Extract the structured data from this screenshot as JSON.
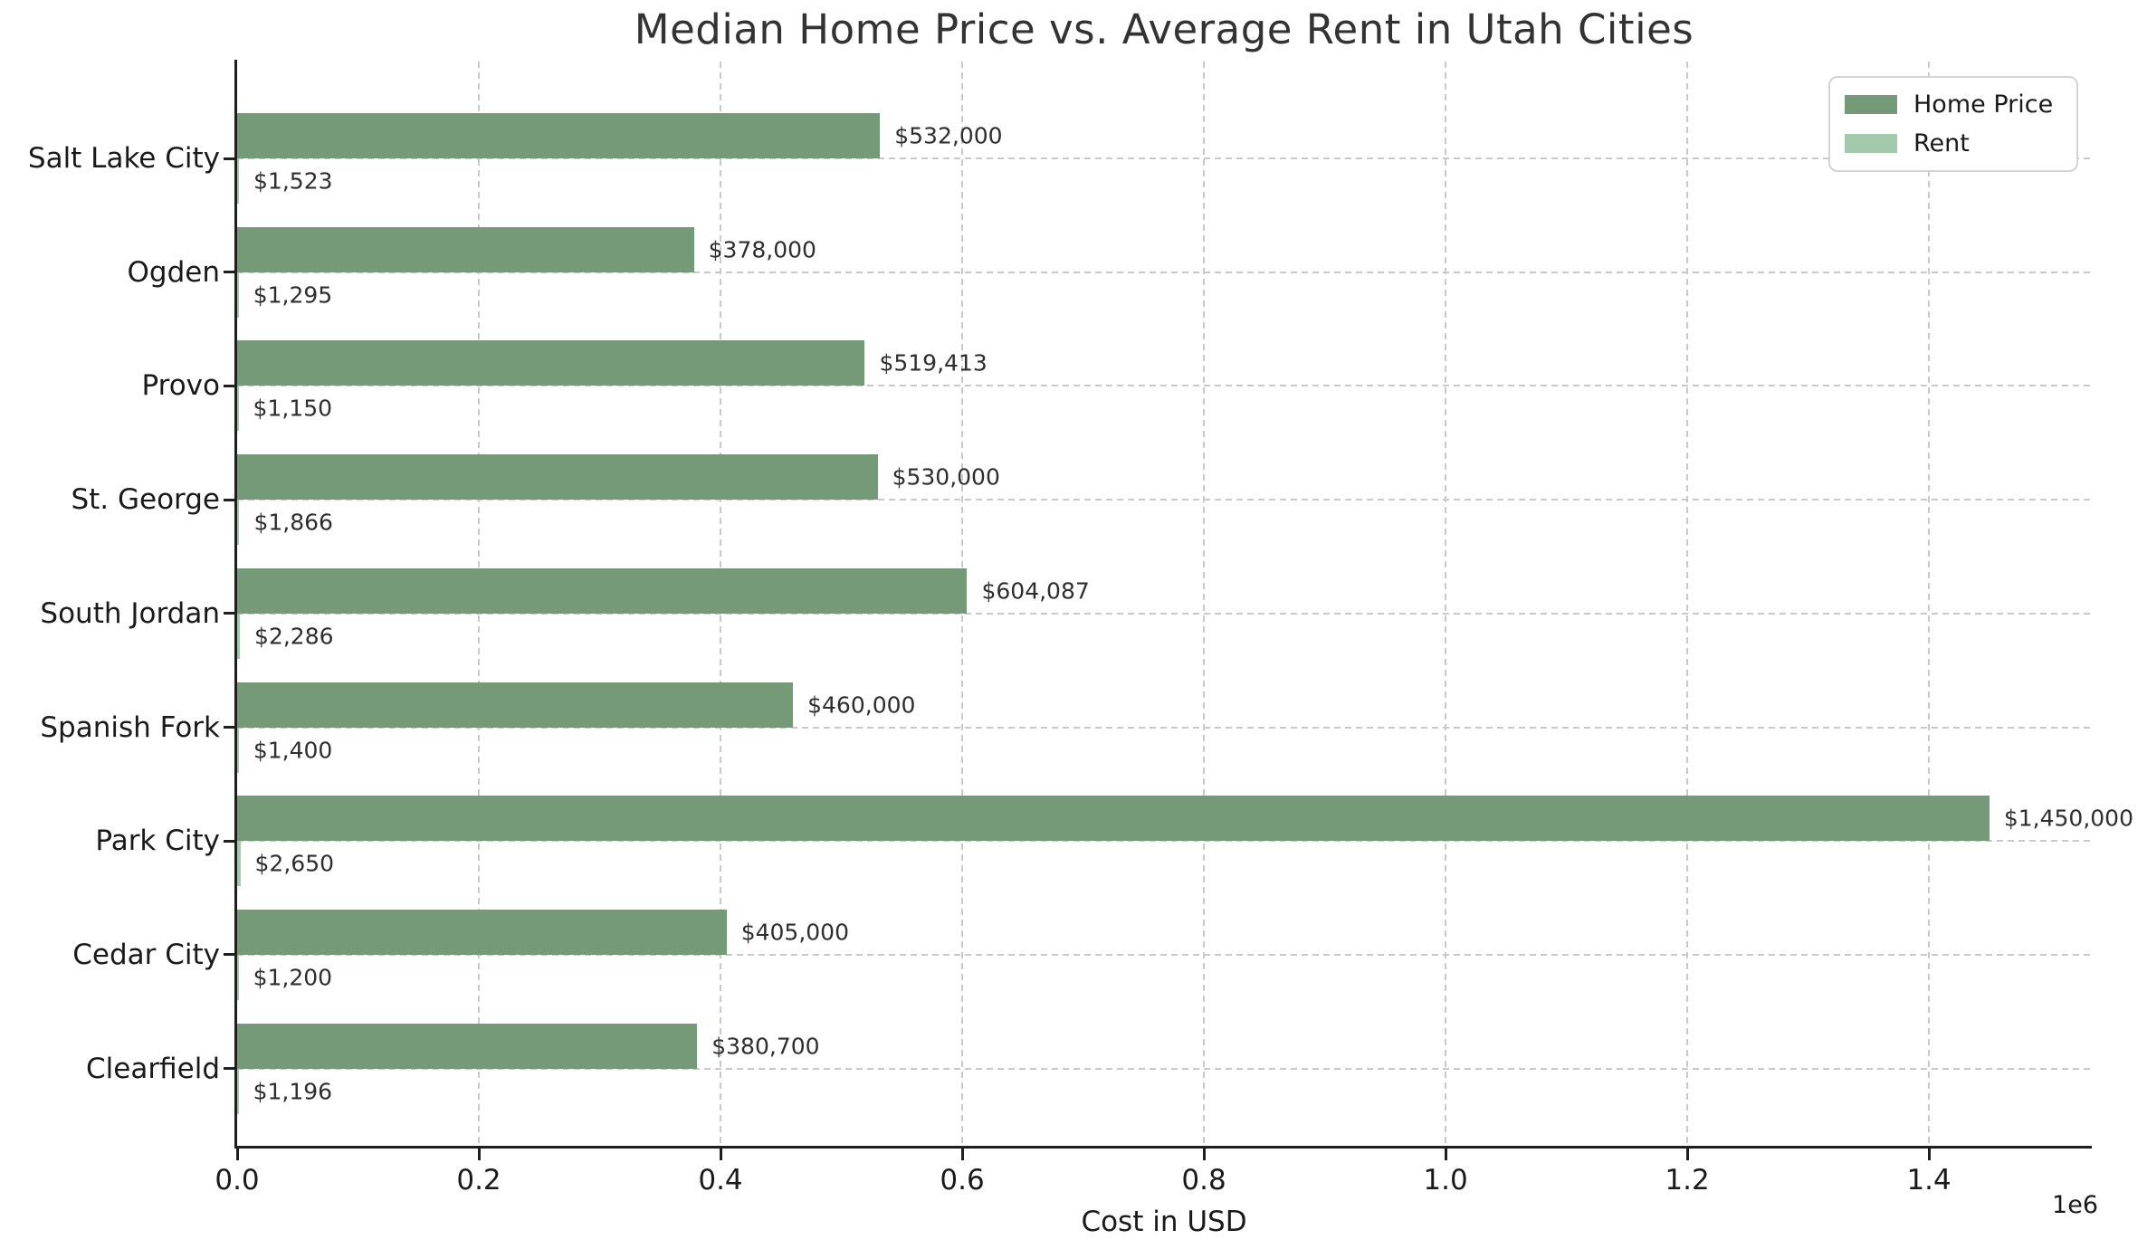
{
  "chart_data": {
    "type": "bar",
    "orientation": "horizontal",
    "title": "Median Home Price vs. Average Rent in Utah Cities",
    "xlabel": "Cost in USD",
    "axis_offset_label": "1e6",
    "grid": "dashed",
    "legend_position": "upper right",
    "categories": [
      "Salt Lake City",
      "Ogden",
      "Provo",
      "St. George",
      "South Jordan",
      "Spanish Fork",
      "Park City",
      "Cedar City",
      "Clearfield"
    ],
    "series": [
      {
        "name": "Home Price",
        "color": "#759a78",
        "values": [
          532000,
          378000,
          519413,
          530000,
          604087,
          460000,
          1450000,
          405000,
          380700
        ],
        "bar_labels": [
          "$532,000",
          "$378,000",
          "$519,413",
          "$530,000",
          "$604,087",
          "$460,000",
          "$1,450,000",
          "$405,000",
          "$380,700"
        ]
      },
      {
        "name": "Rent",
        "color": "#a3c9ac",
        "values": [
          1523,
          1295,
          1150,
          1866,
          2286,
          1400,
          2650,
          1200,
          1196
        ],
        "bar_labels": [
          "$1,523",
          "$1,295",
          "$1,150",
          "$1,866",
          "$2,286",
          "$1,400",
          "$2,650",
          "$1,200",
          "$1,196"
        ]
      }
    ],
    "xlim": [
      0,
      1534000
    ],
    "xticks": {
      "values": [
        0,
        200000,
        400000,
        600000,
        800000,
        1000000,
        1200000,
        1400000
      ],
      "labels": [
        "0.0",
        "0.2",
        "0.4",
        "0.6",
        "0.8",
        "1.0",
        "1.2",
        "1.4"
      ]
    },
    "style": {
      "grid_color": "#c9c9c9",
      "spine_color": "#1f1f1f",
      "text_color": "#1a1a1a",
      "background": "#ffffff"
    }
  }
}
